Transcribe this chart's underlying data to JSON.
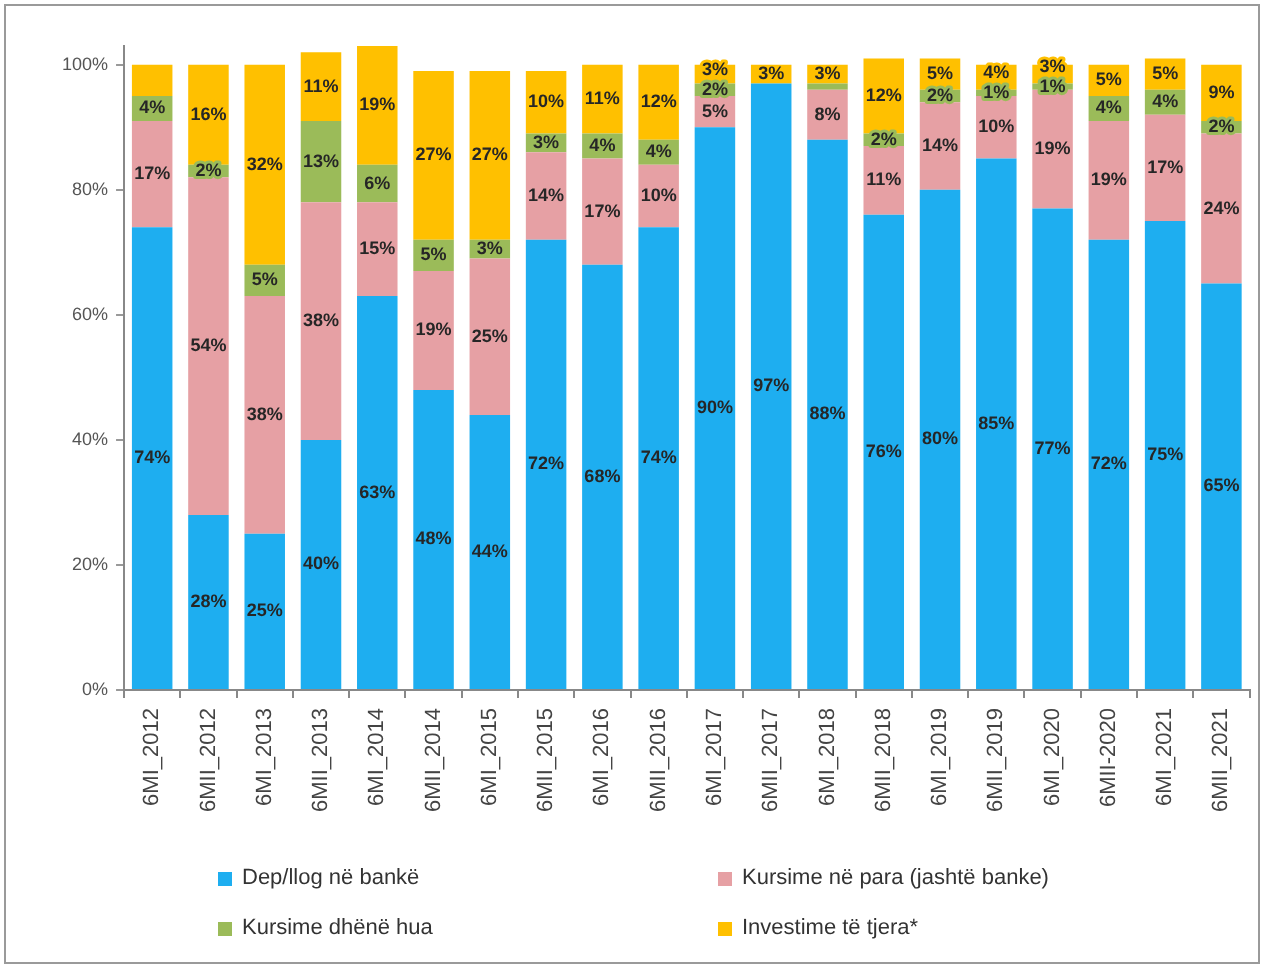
{
  "chart_data": {
    "type": "bar",
    "stacked": true,
    "categories": [
      "6MI_2012",
      "6MII_2012",
      "6MI_2013",
      "6MII_2013",
      "6MI_2014",
      "6MII_2014",
      "6MI_2015",
      "6MII_2015",
      "6MI_2016",
      "6MII_2016",
      "6MI_2017",
      "6MII_2017",
      "6MI_2018",
      "6MII_2018",
      "6MI_2019",
      "6MII_2019",
      "6MI_2020",
      "6MII-2020",
      "6MI_2021",
      "6MII_2021"
    ],
    "series": [
      {
        "name": "Dep/llog në bankë",
        "color": "#1eaef0",
        "values": [
          74,
          28,
          25,
          40,
          63,
          48,
          44,
          72,
          68,
          74,
          90,
          97,
          88,
          76,
          80,
          85,
          77,
          72,
          75,
          65
        ],
        "value_labels": [
          "74%",
          "28%",
          "25%",
          "40%",
          "63%",
          "48%",
          "44%",
          "72%",
          "68%",
          "74%",
          "90%",
          "97%",
          "88%",
          "76%",
          "80%",
          "85%",
          "77%",
          "72%",
          "75%",
          "65%"
        ]
      },
      {
        "name": "Kursime në para (jashtë banke)",
        "color": "#e6a0a4",
        "values": [
          17,
          54,
          38,
          38,
          15,
          19,
          25,
          14,
          17,
          10,
          5,
          null,
          8,
          11,
          14,
          10,
          19,
          19,
          17,
          24
        ],
        "value_labels": [
          "17%",
          "54%",
          "38%",
          "38%",
          "15%",
          "19%",
          "25%",
          "14%",
          "17%",
          "10%",
          "5%",
          null,
          "8%",
          "11%",
          "14%",
          "10%",
          "19%",
          "19%",
          "17%",
          "24%"
        ]
      },
      {
        "name": "Kursime dhënë hua",
        "color": "#9bbb59",
        "values": [
          4,
          2,
          5,
          13,
          6,
          5,
          3,
          3,
          4,
          4,
          2,
          null,
          1,
          2,
          2,
          1,
          1,
          4,
          4,
          2
        ],
        "value_labels": [
          "4%",
          "2%",
          "5%",
          "13%",
          "6%",
          "5%",
          "3%",
          "3%",
          "4%",
          "4%",
          "2%",
          null,
          null,
          "2%",
          "2%",
          "1%",
          "1%",
          "4%",
          "4%",
          "2%"
        ]
      },
      {
        "name": "Investime të tjera*",
        "color": "#ffc000",
        "values": [
          5,
          16,
          32,
          11,
          19,
          27,
          27,
          10,
          11,
          12,
          3,
          3,
          3,
          12,
          5,
          4,
          3,
          5,
          5,
          9
        ],
        "value_labels": [
          null,
          "16%",
          "32%",
          "11%",
          "19%",
          "27%",
          "27%",
          "10%",
          "11%",
          "12%",
          "3%",
          "3%",
          "3%",
          "12%",
          "5%",
          "4%",
          "3%",
          "5%",
          "5%",
          "9%"
        ]
      }
    ],
    "ylim": [
      0,
      103
    ],
    "yticks": [
      {
        "value": 0,
        "label": "0%"
      },
      {
        "value": 20,
        "label": "20%"
      },
      {
        "value": 40,
        "label": "40%"
      },
      {
        "value": 60,
        "label": "60%"
      },
      {
        "value": 80,
        "label": "80%"
      },
      {
        "value": 100,
        "label": "100%"
      }
    ],
    "grid": false,
    "legend": "bottom"
  }
}
